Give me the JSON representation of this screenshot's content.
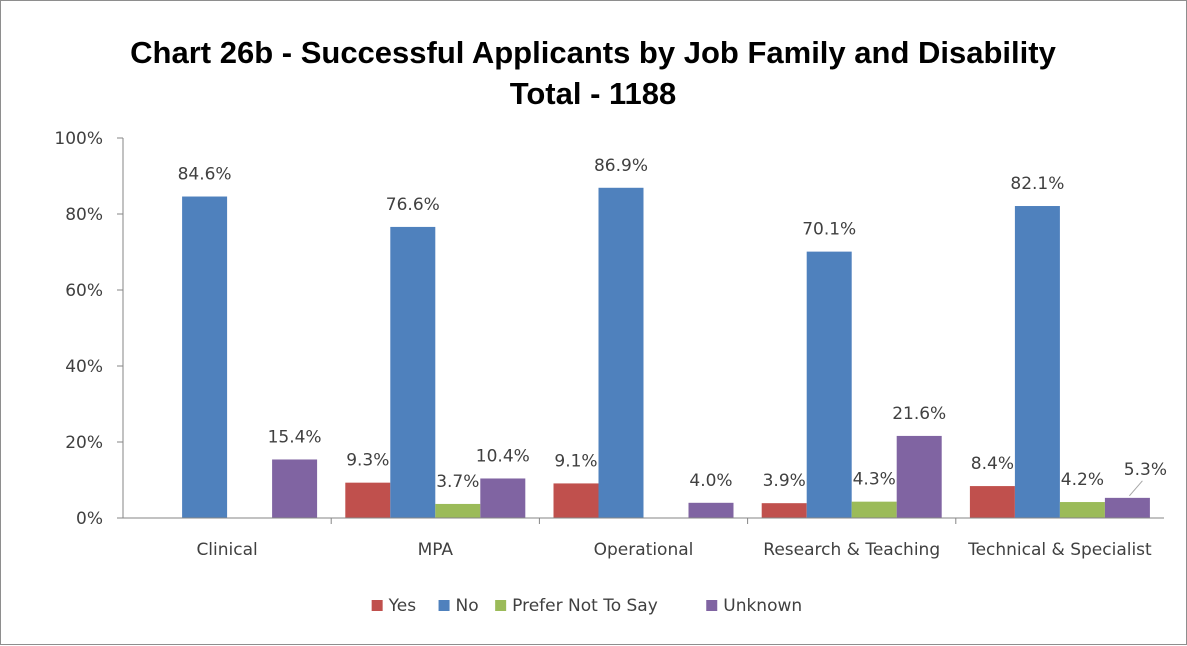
{
  "chart_data": {
    "type": "bar",
    "title": "Chart 26b - Successful Applicants by Job Family and Disability",
    "subtitle": "Total - 1188",
    "xlabel": "",
    "ylabel": "",
    "ylim": [
      0,
      100
    ],
    "yticks": [
      "0%",
      "20%",
      "40%",
      "60%",
      "80%",
      "100%"
    ],
    "categories": [
      "Clinical",
      "MPA",
      "Operational",
      "Research & Teaching",
      "Technical & Specialist"
    ],
    "series": [
      {
        "name": "Yes",
        "color": "#C0504D",
        "values": [
          0,
          9.3,
          9.1,
          3.9,
          8.4
        ],
        "labels": [
          "",
          "9.3%",
          "9.1%",
          "3.9%",
          "8.4%"
        ]
      },
      {
        "name": "No",
        "color": "#4F81BD",
        "values": [
          84.6,
          76.6,
          86.9,
          70.1,
          82.1
        ],
        "labels": [
          "84.6%",
          "76.6%",
          "86.9%",
          "70.1%",
          "82.1%"
        ]
      },
      {
        "name": "Prefer Not To Say",
        "color": "#9BBB59",
        "values": [
          0,
          3.7,
          0,
          4.3,
          4.2
        ],
        "labels": [
          "",
          "3.7%",
          "",
          "4.3%",
          "4.2%"
        ]
      },
      {
        "name": "Unknown",
        "color": "#8064A2",
        "values": [
          15.4,
          10.4,
          4.0,
          21.6,
          5.3
        ],
        "labels": [
          "15.4%",
          "10.4%",
          "4.0%",
          "21.6%",
          "5.3%"
        ]
      }
    ],
    "grid": false,
    "legend": "bottom"
  }
}
